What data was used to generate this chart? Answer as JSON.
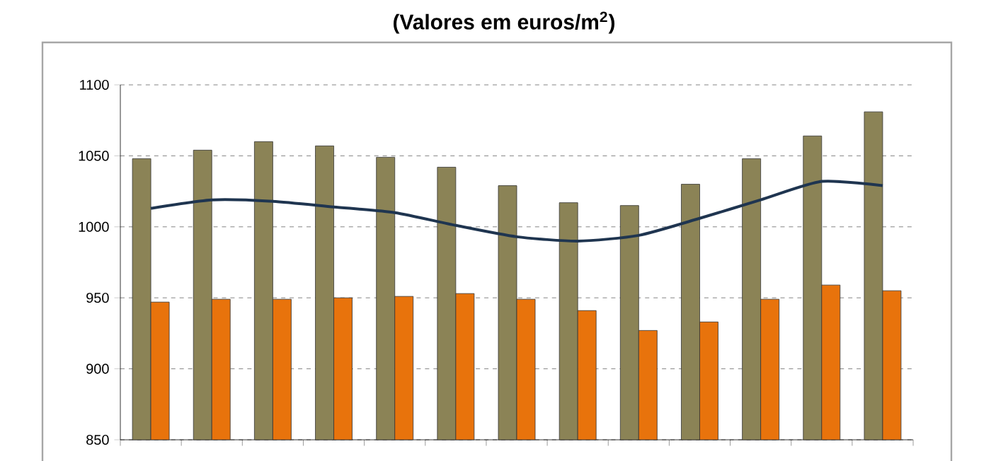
{
  "chart_data": {
    "type": "bar",
    "title": "(Valores em euros/m$^{2}$)",
    "categories": [
      null,
      null,
      null,
      null,
      null,
      null,
      null,
      null,
      null,
      null,
      null,
      null,
      null
    ],
    "series": [
      {
        "color": "#8b8356",
        "values": [
          1048,
          1054,
          1060,
          1057,
          1049,
          1042,
          1029,
          1017,
          1015,
          1030,
          1048,
          1064,
          1081
        ]
      },
      {
        "color": "#e8730c",
        "values": [
          947,
          949,
          949,
          950,
          951,
          953,
          949,
          941,
          927,
          933,
          949,
          959,
          955
        ]
      },
      {
        "type": "line",
        "color": "#1f3550",
        "values": [
          1013,
          1019,
          1018,
          1014,
          1010,
          1001,
          993,
          990,
          994,
          1006,
          1019,
          1032,
          1029
        ]
      }
    ],
    "ylim": [
      850,
      1100
    ],
    "yticks": [
      850,
      900,
      950,
      1000,
      1050,
      1100
    ],
    "grid": "y"
  }
}
